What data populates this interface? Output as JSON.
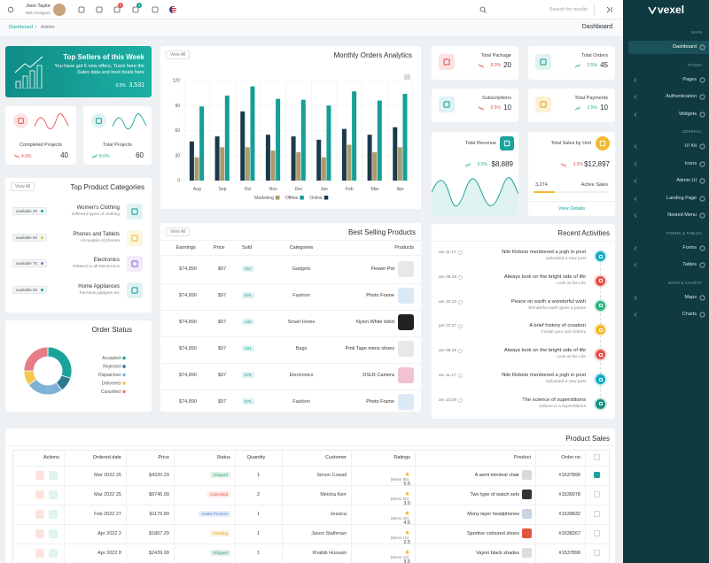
{
  "header": {
    "user_name": "Joon Taylor",
    "user_role": "Web Designer",
    "notification_count": 4,
    "cart_count": 3,
    "search_placeholder": "Search for results"
  },
  "breadcrumb": {
    "items": [
      "Dashboard",
      "Admin"
    ],
    "separator": "/",
    "page_title": "Dashboard"
  },
  "sidebar": {
    "logo": "vexel",
    "sections": [
      {
        "title": "MAIN",
        "items": [
          "Dashboard"
        ]
      },
      {
        "title": "PAGES",
        "items": [
          "Pages",
          "Authentication",
          "Widgets"
        ]
      },
      {
        "title": "GENERAL",
        "items": [
          "UI Kit",
          "Icons",
          "Admin UI",
          "Landing Page",
          "Nested Menu"
        ]
      },
      {
        "title": "FORMS & TABLES",
        "items": [
          "Forms",
          "Tables"
        ]
      },
      {
        "title": "MAPS & CHARTS",
        "items": [
          "Maps",
          "Charts"
        ]
      }
    ]
  },
  "top_sellers": {
    "title": "Top Sellers of this Week",
    "text": "You have got 5 new offers, Track here the Sales data and best deals here.",
    "change": "0.5%",
    "trend": "up",
    "value": "3,531"
  },
  "project_cards": [
    {
      "title": "Completed Projects",
      "change": "4.0%",
      "trend": "down",
      "value": 40
    },
    {
      "title": "Total Projects",
      "change": "8.0%",
      "trend": "up",
      "value": 60
    }
  ],
  "stat_cards": [
    {
      "title": "Total Package",
      "change": "8.0%",
      "trend": "down",
      "value": 20
    },
    {
      "title": "Total Orders",
      "change": "0.5%",
      "trend": "up",
      "value": 45
    },
    {
      "title": "Subscriptions",
      "change": "0.5%",
      "trend": "down",
      "value": 10
    },
    {
      "title": "Total Payments",
      "change": "3.5%",
      "trend": "up",
      "value": 10
    }
  ],
  "revenue": {
    "title": "Total Revenue",
    "change": "5.5%",
    "trend": "up",
    "value": "$8,889"
  },
  "sales_unit": {
    "title": "Total Sales by Unit",
    "change": "3.5%",
    "trend": "down",
    "value": "$12,897",
    "count": "3,274",
    "status": "Active Sales",
    "link": "View Details"
  },
  "orders_chart": {
    "type": "bar",
    "title": "Monthly Orders Analytics",
    "view_all": "View All",
    "categories": [
      "Aug",
      "Sep",
      "Oct",
      "Nov",
      "Dec",
      "Jan",
      "Feb",
      "Mar",
      "Apr"
    ],
    "series": [
      {
        "name": "Marketing",
        "color": "#a99b6c",
        "values": [
          28,
          40,
          40,
          36,
          34,
          28,
          43,
          34,
          40
        ]
      },
      {
        "name": "Offline",
        "color": "#169e97",
        "values": [
          89,
          102,
          113,
          98,
          97,
          90,
          107,
          96,
          104
        ]
      },
      {
        "name": "Online",
        "color": "#1c3a4c",
        "values": [
          47,
          53,
          83,
          55,
          53,
          49,
          62,
          55,
          64
        ]
      }
    ],
    "ylim": [
      0,
      120
    ],
    "yticks": [
      0,
      30,
      60,
      90,
      120
    ],
    "grid": true
  },
  "categories_card": {
    "title": "Top Product Categories",
    "view_all": "View All",
    "items": [
      {
        "name": "Women's Clothing",
        "desc": "Different types of clothing",
        "badge": "available 40",
        "color": "#1aa39a"
      },
      {
        "name": "Phones and Tablets",
        "desc": "All models of phones",
        "badge": "available 60",
        "color": "#f2b92c"
      },
      {
        "name": "Electronics",
        "desc": "Related to all Electronics",
        "badge": "available 70",
        "color": "#8b6fd6"
      },
      {
        "name": "Home Appliances",
        "desc": "Furniture,gadgets etc.",
        "badge": "available 80",
        "color": "#1aa39a"
      }
    ]
  },
  "order_status": {
    "type": "pie",
    "title": "Order Status",
    "series": [
      {
        "name": "Accepted",
        "color": "#1aa39a",
        "value": 30
      },
      {
        "name": "Rejected",
        "color": "#2c7a8c",
        "value": 10
      },
      {
        "name": "Dispatched",
        "color": "#7fb3d5",
        "value": 25
      },
      {
        "name": "Delivered",
        "color": "#f3c84b",
        "value": 10
      },
      {
        "name": "Cancelled",
        "color": "#e57d87",
        "value": 25
      }
    ]
  },
  "best_selling": {
    "title": "Best Selling Products",
    "view_all": "View All",
    "columns": [
      "Earnings",
      "Price",
      "Sold",
      "Categories",
      "Products"
    ],
    "rows": [
      [
        "$74,890",
        "$97",
        457,
        "Gadgets",
        "Flower Pot"
      ],
      [
        "$74,890",
        "$97",
        876,
        "Fashion",
        "Photo Frame"
      ],
      [
        "$74,890",
        "$97",
        432,
        "Smart Home",
        "Nylon White tshirt"
      ],
      [
        "$74,890",
        "$97",
        234,
        "Bags",
        "Pink Tape mens shoes"
      ],
      [
        "$74,890",
        "$97",
        678,
        "Electronics",
        "DSLR Camera"
      ],
      [
        "$74,890",
        "$97",
        876,
        "Fashion",
        "Photo Frame"
      ]
    ]
  },
  "recent_activities": {
    "title": "Recent Activities",
    "items": [
      {
        "time": "am 11:17",
        "title": "Nile Robetz mentioned a jogh in post",
        "subtitle": "Uploaded a new post",
        "color": "#17a9c4"
      },
      {
        "time": "am 08:19",
        "title": "Always look on the bright side of life",
        "subtitle": "Look at the Life",
        "color": "#e5534b"
      },
      {
        "time": "am 10:43",
        "title": "Peace on earth a wonderful wish",
        "subtitle": "Wonderful earth gives a peace",
        "color": "#2bb37e"
      },
      {
        "time": "pm 07:27",
        "title": "A brief history of creation",
        "subtitle": "Create your own history",
        "color": "#f2b92c"
      },
      {
        "time": "am 08:19",
        "title": "Always look on the bright side of life",
        "subtitle": "Look at the Life",
        "color": "#e5534b"
      },
      {
        "time": "am 11:17",
        "title": "Nile Robetz mentioned a jogh in post",
        "subtitle": "Uploaded a new post",
        "color": "#17a9c4"
      },
      {
        "time": "am 10:09",
        "title": "The science of superstitions",
        "subtitle": "Volume is a superstitions",
        "color": "#16907f"
      }
    ]
  },
  "product_sales": {
    "title": "Product Sales",
    "columns": [
      "Actions",
      "Ordered date",
      "Price",
      "Status",
      "Quantity",
      "Customer",
      "Ratings",
      "Product",
      "Order no"
    ],
    "rows": [
      {
        "date": "Mar 2022 25",
        "price": "$4320.29",
        "status": "Shipped",
        "status_color": "#2ca66a",
        "quantity": 1,
        "customer": "Simon Cowall",
        "reviews": "(Mens 90)",
        "rating": "5.0",
        "product": "A semi minimal chair",
        "order_no": "#1537890",
        "checked": true
      },
      {
        "date": "Mar 2022 25",
        "price": "$6745.99",
        "status": "Cancelled",
        "status_color": "#e2574c",
        "quantity": 2,
        "customer": "Meisha Kerr",
        "reviews": "(Mens 50)",
        "rating": "3.0",
        "product": "Two type of watch sets",
        "order_no": "#1539078",
        "checked": false
      },
      {
        "date": "Feb 2022 27",
        "price": "$1176.89",
        "status": "Under Process",
        "status_color": "#4a7fd6",
        "quantity": 1,
        "customer": "Jessica",
        "reviews": "(Mens 40)",
        "rating": "4.5",
        "product": "Mony layer headphones",
        "order_no": "#1539832",
        "checked": false
      },
      {
        "date": "Apr 2022 2",
        "price": "$1867.29",
        "status": "Pending",
        "status_color": "#e0a020",
        "quantity": 1,
        "customer": "Jason Stathman",
        "reviews": "(Mens 15)",
        "rating": "2.5",
        "product": "Sportive coloured shoes",
        "order_no": "#1538267",
        "checked": false
      },
      {
        "date": "Apr 2022 8",
        "price": "$2439.99",
        "status": "Shipped",
        "status_color": "#2ca66a",
        "quantity": 1,
        "customer": "Khabib Hussain",
        "reviews": "(Mens 10)",
        "rating": "3.5",
        "product": "Vayon black shades",
        "order_no": "#1537890",
        "checked": false
      }
    ]
  }
}
